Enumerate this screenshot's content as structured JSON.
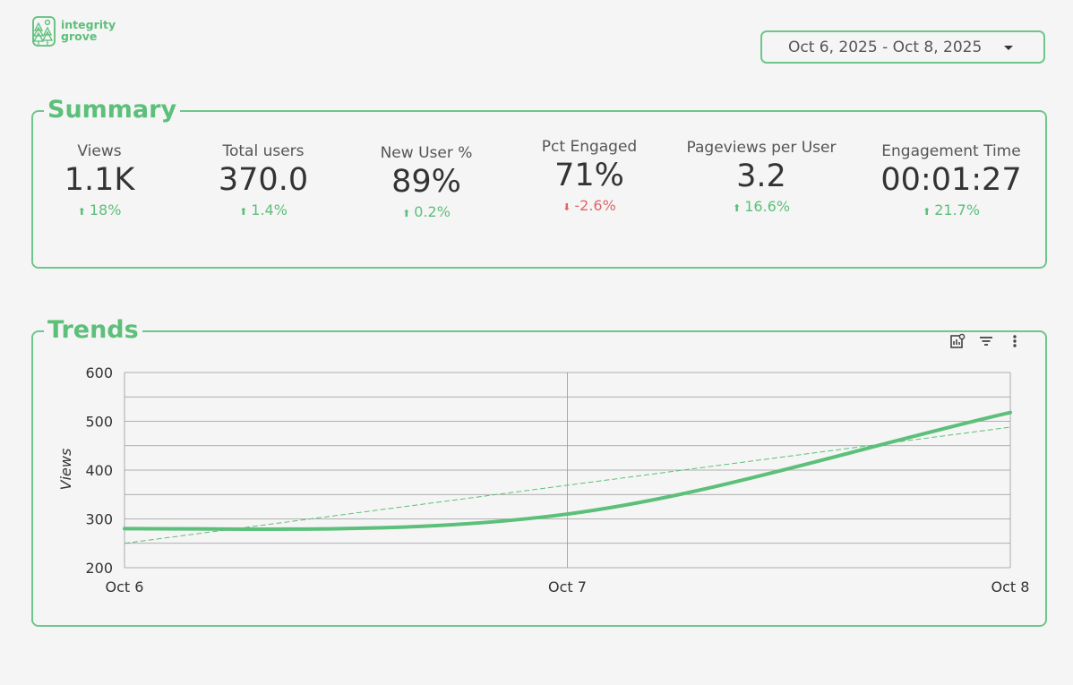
{
  "brand": {
    "line1": "integrity",
    "line2": "grove",
    "accent": "#5cbf7a",
    "icon": "forest-logo-icon"
  },
  "date_range": {
    "label": "Oct 6, 2025 - Oct 8, 2025",
    "icon": "caret-down-icon"
  },
  "summary": {
    "title": "Summary",
    "metrics": [
      {
        "label": "Views",
        "value": "1.1K",
        "delta": "18%",
        "direction": "up"
      },
      {
        "label": "Total users",
        "value": "370.0",
        "delta": "1.4%",
        "direction": "up"
      },
      {
        "label": "New User %",
        "value": "89%",
        "delta": "0.2%",
        "direction": "up"
      },
      {
        "label": "Pct Engaged",
        "value": "71%",
        "delta": "-2.6%",
        "direction": "down"
      },
      {
        "label": "Pageviews per User",
        "value": "3.2",
        "delta": "16.6%",
        "direction": "up"
      },
      {
        "label": "Engagement Time",
        "value": "00:01:27",
        "delta": "21.7%",
        "direction": "up"
      }
    ]
  },
  "trends": {
    "title": "Trends",
    "toolbar_icons": [
      "chart-settings-icon",
      "filter-icon",
      "more-vert-icon"
    ]
  },
  "chart_data": {
    "type": "line",
    "categories": [
      "Oct 6",
      "Oct 7",
      "Oct 8"
    ],
    "ylabel": "Views",
    "xlabel": "",
    "ylim": [
      200,
      600
    ],
    "yticks": [
      "200",
      "300",
      "400",
      "500",
      "600"
    ],
    "series": [
      {
        "values": [
          280,
          310,
          518
        ],
        "color": "#5cbf7a",
        "style": "smooth"
      },
      {
        "values": [
          250,
          369,
          488
        ],
        "color": "#5cbf7a",
        "style": "dashed-trendline"
      }
    ],
    "grid": true
  }
}
